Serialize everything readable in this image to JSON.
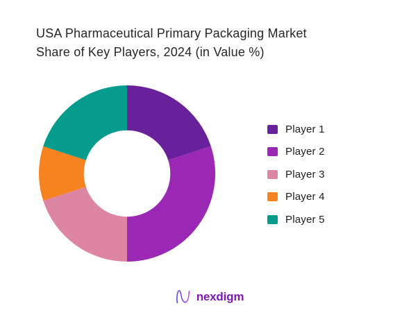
{
  "chart_data": {
    "type": "pie",
    "subtype": "donut",
    "title": "USA Pharmaceutical Primary Packaging Market Share of Key Players, 2024 (in Value %)",
    "title_lines": [
      "USA Pharmaceutical Primary Packaging Market",
      "Share of Key Players, 2024 (in Value %)"
    ],
    "categories": [
      "Player 1",
      "Player 2",
      "Player 3",
      "Player 4",
      "Player 5"
    ],
    "values": [
      20,
      30,
      20,
      10,
      20
    ],
    "unit": "% of market value",
    "colors": [
      "#69219B",
      "#9B28B4",
      "#DE85A3",
      "#F68220",
      "#059C8D"
    ],
    "start_angle_deg": 0,
    "direction": "clockwise",
    "inner_radius_ratio": 0.49,
    "legend_position": "right",
    "data_labels_shown": false
  },
  "footer": {
    "logo_text": "nexdigm"
  }
}
